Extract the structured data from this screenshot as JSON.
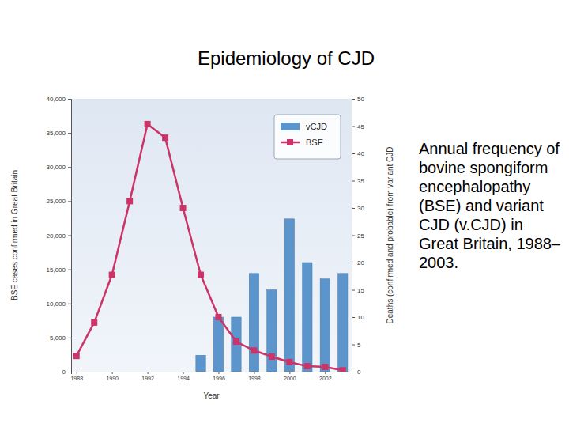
{
  "chart_data": {
    "type": "bar",
    "title": "Epidemiology of CJD",
    "annotation": "Annual frequency of bovine spongiform encephalopathy (BSE) and variant CJD (v.CJD) in Great Britain, 1988– 2003.",
    "x_label": "Year",
    "y_label": "BSE cases confirmed in Great Britain",
    "y2_label": "Deaths (confirmed and probable) from variant CJD",
    "x": [
      1988,
      1989,
      1990,
      1991,
      1992,
      1993,
      1994,
      1995,
      1996,
      1997,
      1998,
      1999,
      2000,
      2001,
      2002,
      2003
    ],
    "xlim": [
      1987.7,
      2003.5
    ],
    "xticks": [
      1988,
      1990,
      1992,
      1994,
      1996,
      1998,
      2000,
      2002
    ],
    "ylim": [
      0,
      40000
    ],
    "yticks": [
      0,
      {
        "value": 5000,
        "label": "5,000"
      },
      {
        "value": 10000,
        "label": "10,000"
      },
      {
        "value": 15000,
        "label": "15,000"
      },
      {
        "value": 20000,
        "label": "20,000"
      },
      {
        "value": 25000,
        "label": "25,000"
      },
      {
        "value": 30000,
        "label": "30,000"
      },
      {
        "value": 35000,
        "label": "35,000"
      },
      {
        "value": 40000,
        "label": "40,000"
      }
    ],
    "y2lim": [
      0,
      50
    ],
    "y2ticks": [
      0,
      5,
      10,
      15,
      20,
      25,
      30,
      35,
      40,
      45,
      50
    ],
    "legend": "upper right",
    "grid": false,
    "series": [
      {
        "name": "vCJD",
        "type": "bar",
        "axis": "y2",
        "color": "#5b95cc",
        "values": [
          null,
          null,
          null,
          null,
          null,
          null,
          null,
          3,
          10,
          10,
          18,
          15,
          28,
          20,
          17,
          18
        ]
      },
      {
        "name": "BSE",
        "type": "line",
        "color": "#cc3366",
        "marker": "square",
        "line_style": "solid",
        "values": [
          2300,
          7200,
          14200,
          25000,
          36300,
          34300,
          24000,
          14200,
          8000,
          4400,
          3100,
          2200,
          1400,
          800,
          700,
          200
        ]
      }
    ]
  }
}
